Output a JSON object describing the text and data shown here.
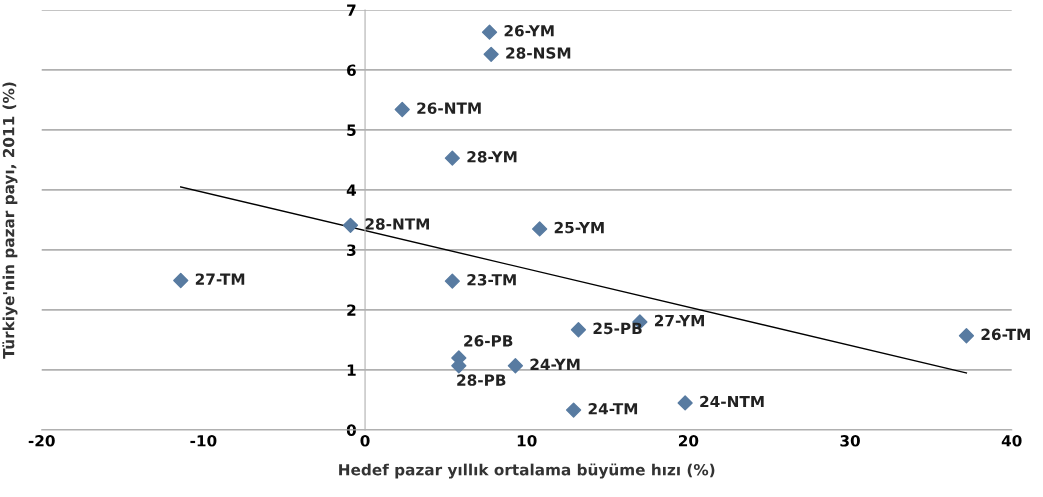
{
  "chart_data": {
    "type": "scatter",
    "xlabel": "Hedef pazar yıllık ortalama büyüme hızı (%)",
    "ylabel": "Türkiye'nin pazar payı, 2011 (%)",
    "xlim": [
      -20,
      40
    ],
    "xticks": [
      -20,
      -10,
      0,
      10,
      20,
      30,
      40
    ],
    "ylim": [
      0,
      7
    ],
    "yticks": [
      0,
      1,
      2,
      3,
      4,
      5,
      6,
      7
    ],
    "grid": "y",
    "marker": "diamond",
    "series": [
      {
        "color": "#587ba1",
        "x": [
          7.7,
          7.8,
          2.3,
          5.4,
          -0.9,
          10.8,
          -11.4,
          5.4,
          13.2,
          17.0,
          37.2,
          5.8,
          5.8,
          9.3,
          12.9,
          19.8
        ],
        "values": [
          6.63,
          6.26,
          5.34,
          4.53,
          3.41,
          3.35,
          2.49,
          2.48,
          1.67,
          1.8,
          1.57,
          1.2,
          1.07,
          1.07,
          0.33,
          0.45
        ]
      },
      {
        "type": "line",
        "color": "#000000",
        "marker": "none",
        "x": [
          -11.4,
          37.2
        ],
        "values": [
          4.05,
          0.95
        ]
      }
    ],
    "annotations": [
      {
        "text": "26-YM",
        "x": 7.7,
        "y": 6.63
      },
      {
        "text": "28-NSM",
        "x": 7.8,
        "y": 6.26
      },
      {
        "text": "26-NTM",
        "x": 2.3,
        "y": 5.34
      },
      {
        "text": "28-YM",
        "x": 5.4,
        "y": 4.53
      },
      {
        "text": "28-NTM",
        "x": -0.9,
        "y": 3.41
      },
      {
        "text": "25-YM",
        "x": 10.8,
        "y": 3.35
      },
      {
        "text": "27-TM",
        "x": -11.4,
        "y": 2.49
      },
      {
        "text": "23-TM",
        "x": 5.4,
        "y": 2.48
      },
      {
        "text": "25-PB",
        "x": 13.2,
        "y": 1.67
      },
      {
        "text": "27-YM",
        "x": 17.0,
        "y": 1.8
      },
      {
        "text": "26-TM",
        "x": 37.2,
        "y": 1.57
      },
      {
        "text": "26-PB",
        "x": 5.8,
        "y": 1.2
      },
      {
        "text": "28-PB",
        "x": 5.8,
        "y": 1.07
      },
      {
        "text": "24-YM",
        "x": 9.3,
        "y": 1.07
      },
      {
        "text": "24-TM",
        "x": 12.9,
        "y": 0.33
      },
      {
        "text": "24-NTM",
        "x": 19.8,
        "y": 0.45
      }
    ]
  }
}
